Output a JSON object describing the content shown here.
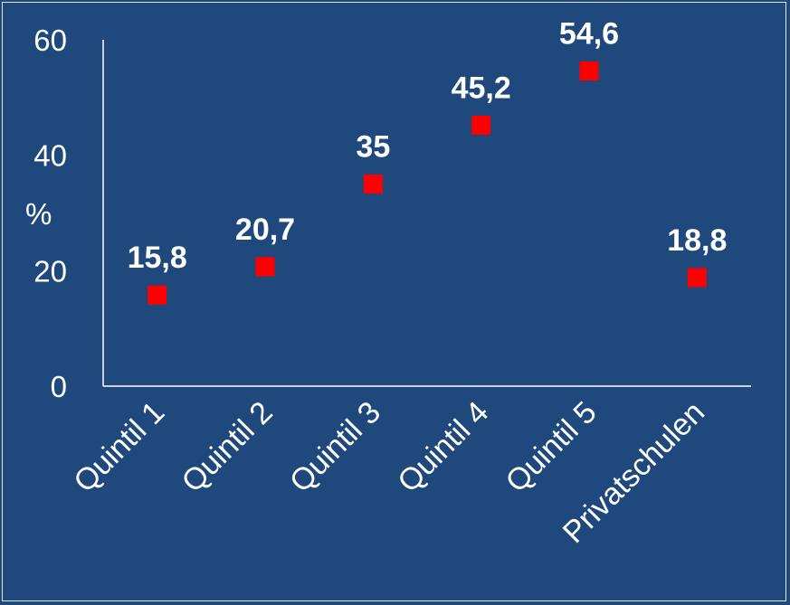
{
  "chart_data": {
    "type": "scatter",
    "categories": [
      "Quintil 1",
      "Quintil 2",
      "Quintil 3",
      "Quintil 4",
      "Quintil 5",
      "Privatschulen"
    ],
    "values": [
      15.8,
      20.7,
      35,
      45.2,
      54.6,
      18.8
    ],
    "data_labels": [
      "15,8",
      "20,7",
      "35",
      "45,2",
      "54,6",
      "18,8"
    ],
    "ylabel": "%",
    "ylim": [
      0,
      60
    ],
    "yticks": [
      "0",
      "20",
      "40",
      "60"
    ],
    "grid": false,
    "legend": "none",
    "colors": {
      "background": "#1f497d",
      "marker": "#ff0000",
      "text": "#ffffff",
      "axis": "#ffffff"
    }
  }
}
